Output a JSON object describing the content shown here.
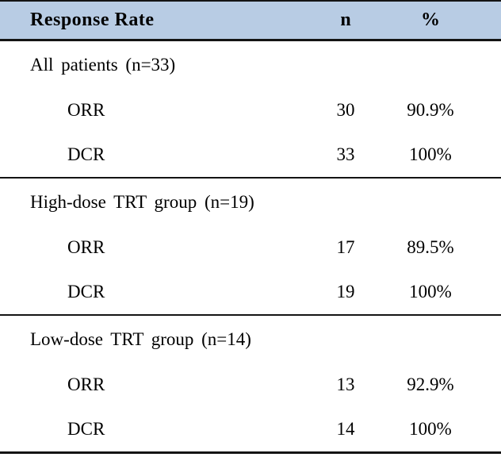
{
  "table": {
    "header": {
      "response_rate": "Response Rate",
      "n": "n",
      "percent": "%"
    },
    "sections": [
      {
        "label": "All patients (n=33)",
        "rows": [
          {
            "measure": "ORR",
            "n": "30",
            "percent": "90.9%"
          },
          {
            "measure": "DCR",
            "n": "33",
            "percent": "100%"
          }
        ]
      },
      {
        "label": "High-dose TRT group (n=19)",
        "rows": [
          {
            "measure": "ORR",
            "n": "17",
            "percent": "89.5%"
          },
          {
            "measure": "DCR",
            "n": "19",
            "percent": "100%"
          }
        ]
      },
      {
        "label": "Low-dose TRT group (n=14)",
        "rows": [
          {
            "measure": "ORR",
            "n": "13",
            "percent": "92.9%"
          },
          {
            "measure": "DCR",
            "n": "14",
            "percent": "100%"
          }
        ]
      }
    ]
  },
  "colors": {
    "header_bg": "#b8cce4",
    "rule": "#141414",
    "text": "#000000"
  }
}
